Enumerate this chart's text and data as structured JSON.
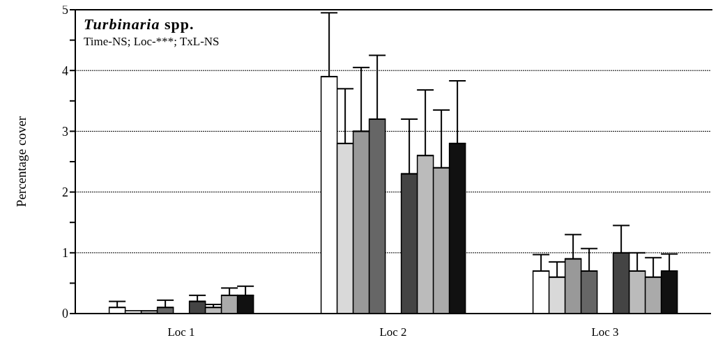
{
  "chart_data": {
    "type": "bar",
    "title": "Turbinaria spp.",
    "subtitle": "Time-NS; Loc-***; TxL-NS",
    "ylabel": "Percentage cover",
    "categories": [
      "Loc 1",
      "Loc 2",
      "Loc 3"
    ],
    "series": [
      {
        "color": "#ffffff",
        "values": [
          0.1,
          3.9,
          0.7
        ],
        "errors": [
          [
            0.1,
            0.2
          ],
          [
            3.9,
            4.95
          ],
          [
            0.7,
            0.97
          ]
        ]
      },
      {
        "color": "#d9d9d9",
        "values": [
          0.05,
          2.8,
          0.6
        ],
        "errors": [
          null,
          [
            2.8,
            3.7
          ],
          [
            0.6,
            0.85
          ]
        ]
      },
      {
        "color": "#999999",
        "values": [
          0.05,
          3.0,
          0.9
        ],
        "errors": [
          null,
          [
            3.0,
            4.05
          ],
          [
            0.9,
            1.3
          ]
        ]
      },
      {
        "color": "#666666",
        "values": [
          0.1,
          3.2,
          0.7
        ],
        "errors": [
          [
            0.1,
            0.22
          ],
          [
            3.2,
            4.25
          ],
          [
            0.7,
            1.07
          ]
        ]
      },
      {
        "color": "#444444",
        "values": [
          0.2,
          2.3,
          1.0
        ],
        "errors": [
          [
            0.2,
            0.3
          ],
          [
            2.3,
            3.2
          ],
          [
            1.0,
            1.45
          ]
        ]
      },
      {
        "color": "#bbbbbb",
        "values": [
          0.1,
          2.6,
          0.7
        ],
        "errors": [
          [
            0.1,
            0.15
          ],
          [
            2.6,
            3.68
          ],
          [
            0.7,
            1.0
          ]
        ]
      },
      {
        "color": "#aaaaaa",
        "values": [
          0.3,
          2.4,
          0.6
        ],
        "errors": [
          [
            0.3,
            0.42
          ],
          [
            2.4,
            3.35
          ],
          [
            0.6,
            0.92
          ]
        ]
      },
      {
        "color": "#111111",
        "values": [
          0.3,
          2.8,
          0.7
        ],
        "errors": [
          [
            0.3,
            0.45
          ],
          [
            2.8,
            3.83
          ],
          [
            0.7,
            0.98
          ]
        ]
      }
    ],
    "ylim": [
      0,
      5
    ],
    "yticks": [
      0,
      {
        "value": 0.5,
        "label": null
      },
      1,
      {
        "value": 1.5,
        "label": null
      },
      2,
      {
        "value": 2.5,
        "label": null
      },
      3,
      {
        "value": 3.5,
        "label": null
      },
      4,
      {
        "value": 4.5,
        "label": null
      },
      5
    ],
    "grid": "y"
  }
}
